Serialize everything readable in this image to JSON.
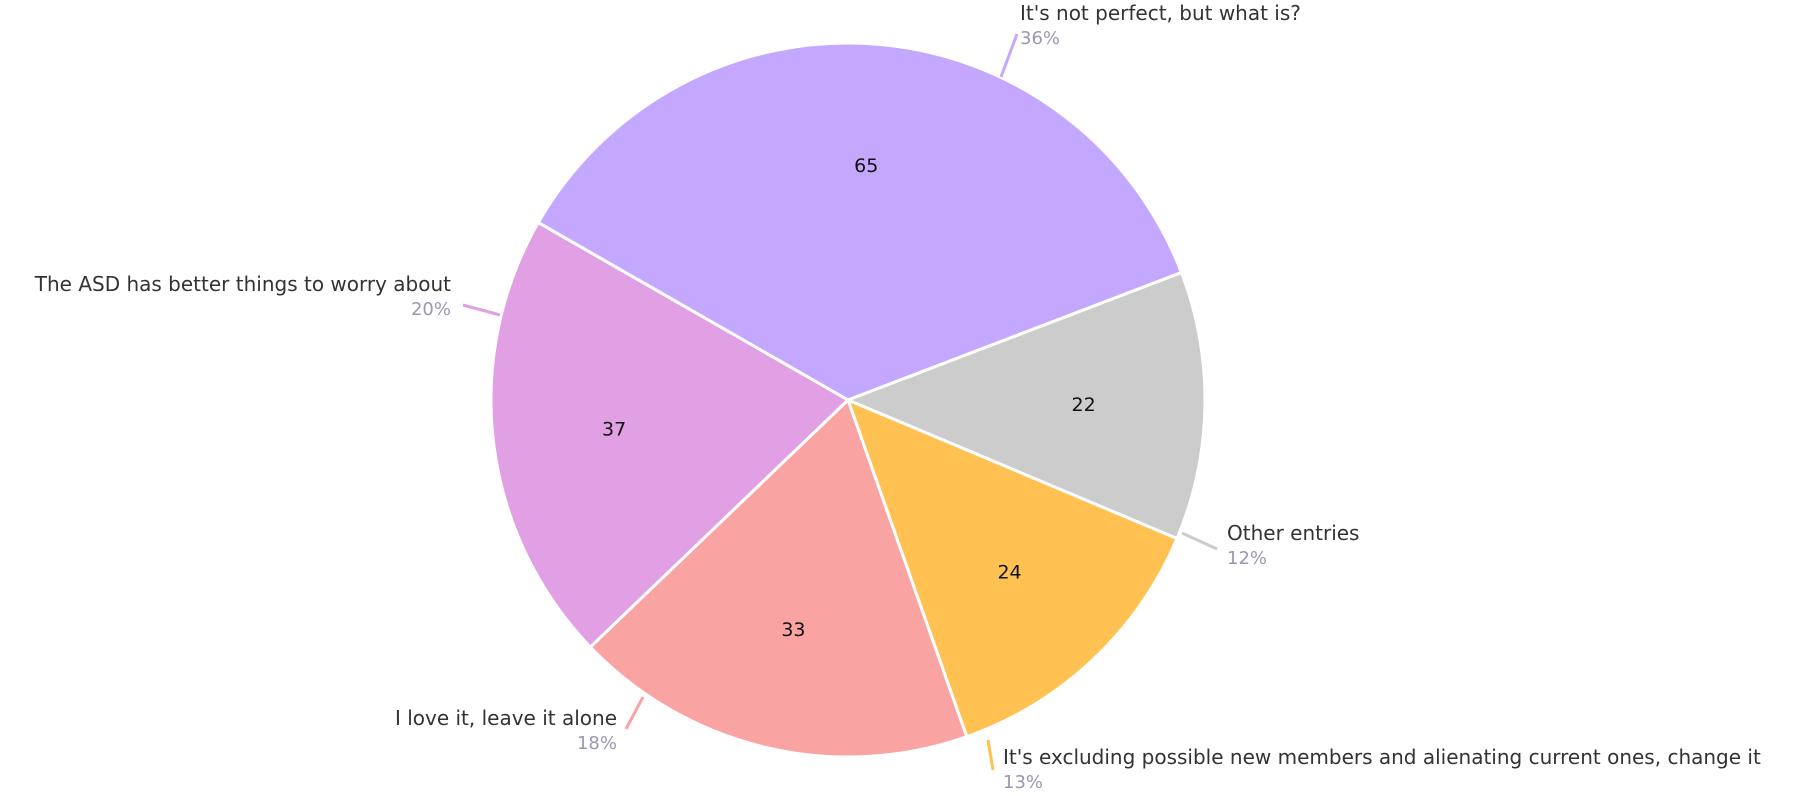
{
  "chart_data": {
    "type": "pie",
    "slices": [
      {
        "label": "It's not perfect, but what is?",
        "value": 65,
        "percent": "36%",
        "color": "#c4a8ff"
      },
      {
        "label": "Other entries",
        "value": 22,
        "percent": "12%",
        "color": "#cccccc"
      },
      {
        "label": "It's excluding possible new members and alienating current ones, change it",
        "value": 24,
        "percent": "13%",
        "color": "#ffc252"
      },
      {
        "label": "I love it, leave it alone",
        "value": 33,
        "percent": "18%",
        "color": "#faa3a3"
      },
      {
        "label": "The ASD has better things to worry about",
        "value": 37,
        "percent": "20%",
        "color": "#e1a0e3"
      }
    ]
  }
}
